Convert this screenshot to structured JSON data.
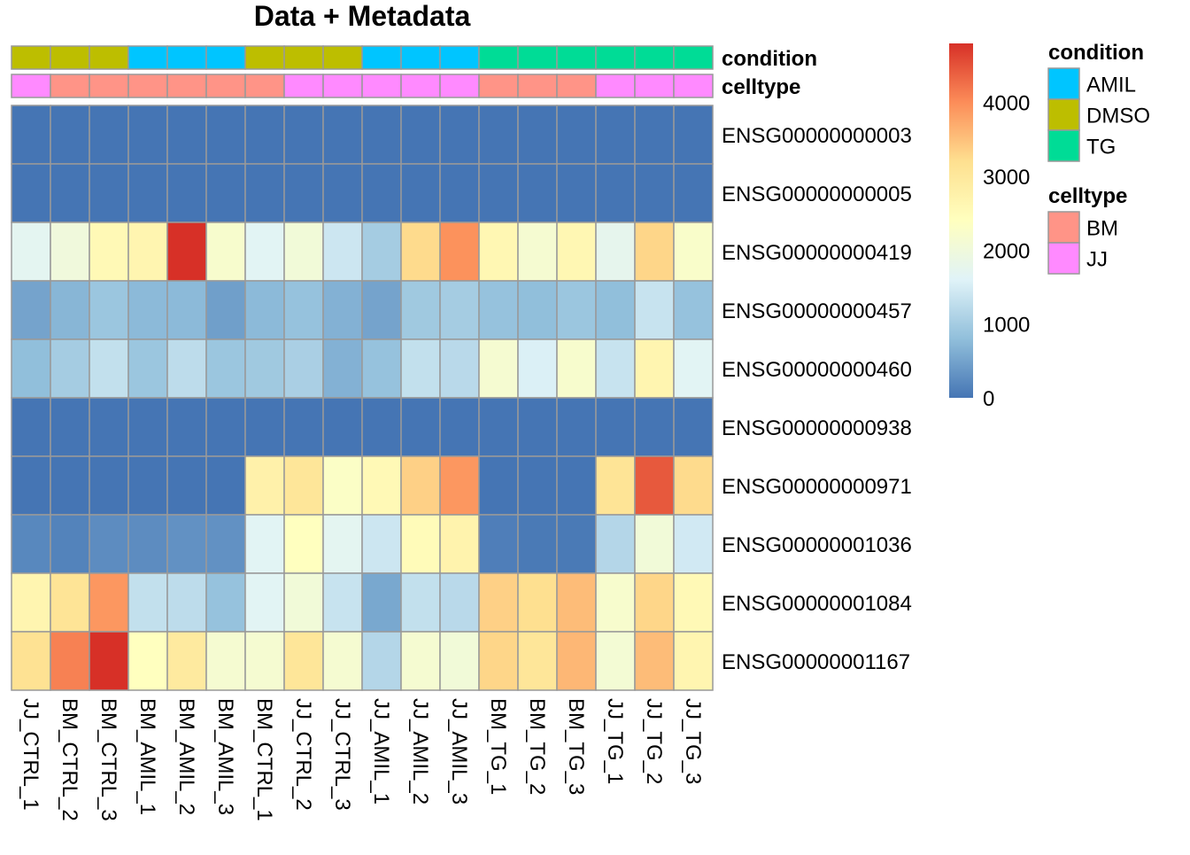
{
  "chart_data": {
    "type": "heatmap",
    "title": "Data + Metadata",
    "columns": [
      "JJ_CTRL_1",
      "BM_CTRL_2",
      "BM_CTRL_3",
      "BM_AMIL_1",
      "BM_AMIL_2",
      "BM_AMIL_3",
      "BM_CTRL_1",
      "JJ_CTRL_2",
      "JJ_CTRL_3",
      "JJ_AMIL_1",
      "JJ_AMIL_2",
      "JJ_AMIL_3",
      "BM_TG_1",
      "BM_TG_2",
      "BM_TG_3",
      "JJ_TG_1",
      "JJ_TG_2",
      "JJ_TG_3"
    ],
    "rows": [
      "ENSG00000000003",
      "ENSG00000000005",
      "ENSG00000000419",
      "ENSG00000000457",
      "ENSG00000000460",
      "ENSG00000000938",
      "ENSG00000000971",
      "ENSG00000001036",
      "ENSG00000001084",
      "ENSG00000001167"
    ],
    "values": [
      [
        0,
        0,
        0,
        0,
        0,
        0,
        0,
        0,
        0,
        0,
        0,
        0,
        0,
        0,
        0,
        0,
        0,
        0
      ],
      [
        0,
        0,
        0,
        0,
        0,
        0,
        0,
        0,
        0,
        0,
        0,
        0,
        0,
        0,
        0,
        0,
        0,
        0
      ],
      [
        1700,
        2000,
        2550,
        2650,
        4800,
        2200,
        1650,
        2050,
        1400,
        1000,
        3250,
        3950,
        2600,
        2150,
        2600,
        1750,
        3300,
        2250
      ],
      [
        500,
        700,
        900,
        750,
        750,
        450,
        750,
        850,
        650,
        500,
        950,
        1000,
        850,
        800,
        900,
        800,
        1350,
        850
      ],
      [
        800,
        1000,
        1300,
        900,
        1250,
        900,
        950,
        1050,
        650,
        850,
        1300,
        1200,
        2150,
        1550,
        2200,
        1350,
        2650,
        1650
      ],
      [
        0,
        0,
        0,
        0,
        0,
        0,
        0,
        0,
        0,
        0,
        0,
        0,
        0,
        0,
        0,
        0,
        0,
        0
      ],
      [
        0,
        0,
        0,
        0,
        0,
        0,
        2750,
        3050,
        2300,
        2550,
        3350,
        3900,
        0,
        0,
        0,
        3100,
        4450,
        3250
      ],
      [
        200,
        150,
        250,
        250,
        300,
        300,
        1650,
        2400,
        1700,
        1400,
        2500,
        2700,
        100,
        50,
        50,
        1150,
        2050,
        1450
      ],
      [
        2650,
        3100,
        3900,
        1300,
        1250,
        850,
        1650,
        2050,
        1350,
        550,
        1300,
        1200,
        3350,
        3200,
        3550,
        2200,
        3300,
        2550
      ],
      [
        3150,
        4100,
        4800,
        2400,
        2950,
        2150,
        2150,
        3050,
        2150,
        1150,
        2150,
        2050,
        3300,
        3050,
        3600,
        2100,
        3550,
        2650
      ]
    ],
    "annotations": {
      "condition": [
        "DMSO",
        "DMSO",
        "DMSO",
        "AMIL",
        "AMIL",
        "AMIL",
        "DMSO",
        "DMSO",
        "DMSO",
        "AMIL",
        "AMIL",
        "AMIL",
        "TG",
        "TG",
        "TG",
        "TG",
        "TG",
        "TG"
      ],
      "celltype": [
        "JJ",
        "BM",
        "BM",
        "BM",
        "BM",
        "BM",
        "BM",
        "JJ",
        "JJ",
        "JJ",
        "JJ",
        "JJ",
        "BM",
        "BM",
        "BM",
        "JJ",
        "JJ",
        "JJ"
      ]
    },
    "annotation_labels": [
      "condition",
      "celltype"
    ],
    "annotation_colors": {
      "condition": {
        "AMIL": "#00C5FF",
        "DMSO": "#BDBE00",
        "TG": "#00DC96"
      },
      "celltype": {
        "BM": "#FF9487",
        "JJ": "#FF8AFF"
      }
    },
    "legend": {
      "condition": {
        "title": "condition",
        "items": [
          "AMIL",
          "DMSO",
          "TG"
        ]
      },
      "celltype": {
        "title": "celltype",
        "items": [
          "BM",
          "JJ"
        ]
      }
    },
    "colorbar": {
      "min": 0,
      "max": 4800,
      "ticks": [
        {
          "value": 0,
          "label": "0"
        },
        {
          "value": 1000,
          "label": "1000"
        },
        {
          "value": 2000,
          "label": "2000"
        },
        {
          "value": 3000,
          "label": "3000"
        },
        {
          "value": 4000,
          "label": "4000"
        }
      ],
      "palette": [
        "#4575B4",
        "#91BFDB",
        "#E0F3F8",
        "#FFFFBF",
        "#FEE090",
        "#FC8D59",
        "#D73027"
      ]
    },
    "cell_border_color": "#999999"
  }
}
